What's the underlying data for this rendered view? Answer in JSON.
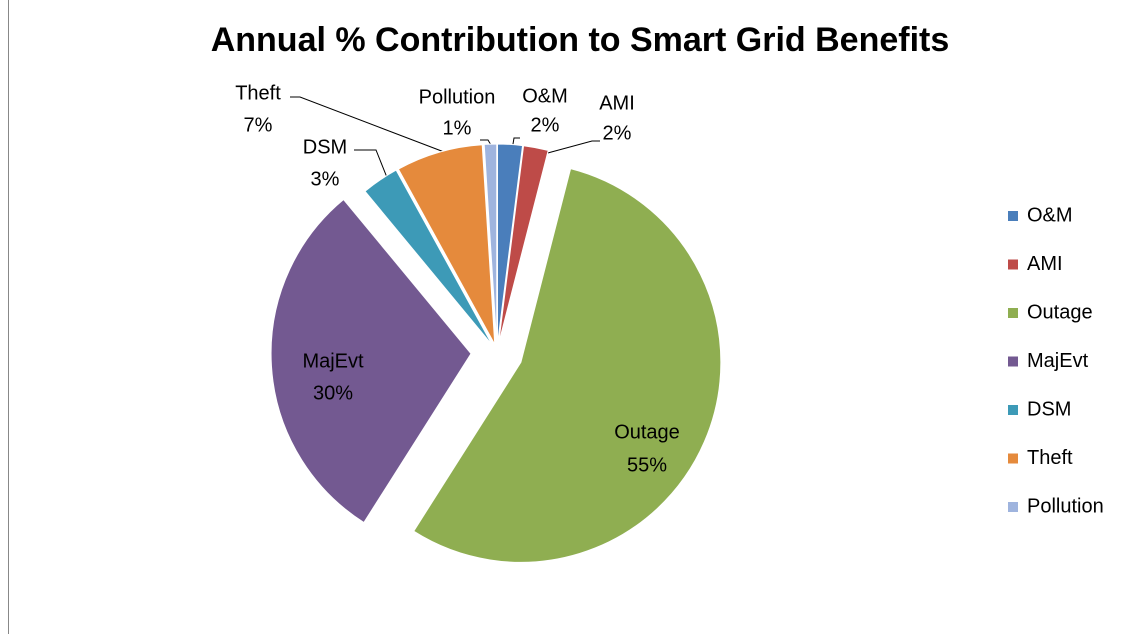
{
  "chart_data": {
    "type": "pie",
    "title": "Annual % Contribution to Smart Grid Benefits",
    "categories": [
      "O&M",
      "AMI",
      "Outage",
      "MajEvt",
      "DSM",
      "Theft",
      "Pollution"
    ],
    "values": [
      2,
      2,
      55,
      30,
      3,
      7,
      1
    ],
    "value_labels": [
      "2%",
      "2%",
      "55%",
      "30%",
      "3%",
      "7%",
      "1%"
    ],
    "colors": [
      "#4a7ebb",
      "#be4b48",
      "#8fae51",
      "#735991",
      "#3d9ab7",
      "#e58a3c",
      "#9fb4de"
    ],
    "legend": "right"
  }
}
